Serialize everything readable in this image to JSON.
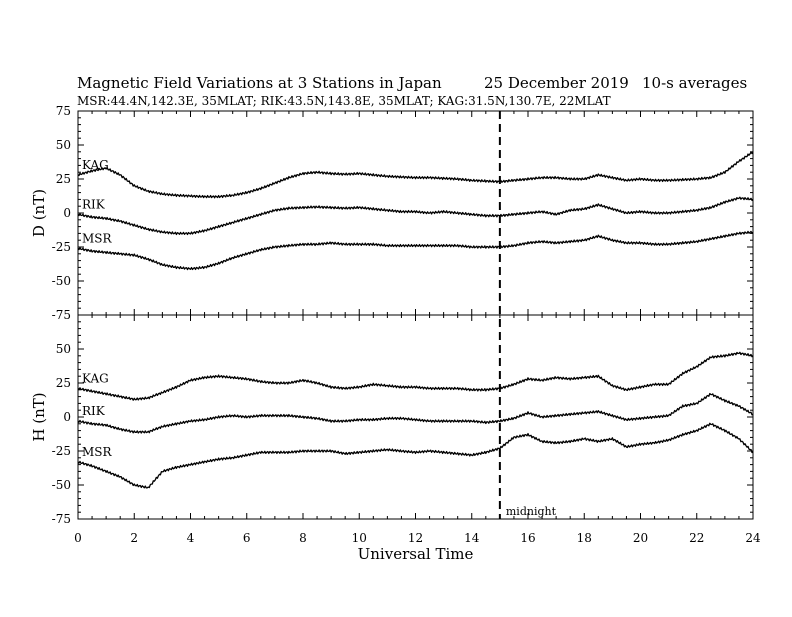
{
  "header": {
    "title": "Magnetic Field Variations at 3 Stations in Japan",
    "date": "25 December 2019",
    "averaging": "10-s averages",
    "stations": "MSR:44.4N,142.3E, 35MLAT;  RIK:43.5N,143.8E, 35MLAT;  KAG:31.5N,130.7E, 22MLAT"
  },
  "chart_data": {
    "type": "line",
    "xlabel": "Universal Time",
    "xlim": [
      0,
      24
    ],
    "xticks": [
      0,
      2,
      4,
      6,
      8,
      10,
      12,
      14,
      16,
      18,
      20,
      22,
      24
    ],
    "marker": {
      "x": 15,
      "label": "midnight",
      "style": "dashed"
    },
    "panels": [
      {
        "id": "D",
        "ylabel": "D (nT)",
        "ylim": [
          -75,
          75
        ],
        "yticks": [
          75,
          50,
          25,
          0,
          -25,
          -50,
          -75
        ],
        "series": [
          {
            "name": "KAG",
            "x": [
              0,
              0.5,
              1,
              1.5,
              2,
              2.5,
              3,
              3.5,
              4,
              4.5,
              5,
              5.5,
              6,
              6.5,
              7,
              7.5,
              8,
              8.5,
              9,
              9.5,
              10,
              10.5,
              11,
              11.5,
              12,
              12.5,
              13,
              13.5,
              14,
              14.5,
              15,
              15.5,
              16,
              16.5,
              17,
              17.5,
              18,
              18.5,
              19,
              19.5,
              20,
              20.5,
              21,
              21.5,
              22,
              22.5,
              23,
              23.5,
              24
            ],
            "y": [
              28,
              31,
              33,
              28,
              20,
              16,
              14,
              13,
              12.5,
              12,
              12,
              13,
              15,
              18,
              22,
              26,
              29,
              30,
              29,
              28.5,
              29,
              28,
              27,
              26.5,
              26,
              26,
              25.5,
              25,
              24,
              23.5,
              23,
              24,
              25,
              26,
              26,
              25,
              25,
              28,
              26,
              24,
              25,
              24,
              24,
              24.5,
              25,
              26,
              30,
              38,
              45
            ]
          },
          {
            "name": "RIK",
            "x": [
              0,
              0.5,
              1,
              1.5,
              2,
              2.5,
              3,
              3.5,
              4,
              4.5,
              5,
              5.5,
              6,
              6.5,
              7,
              7.5,
              8,
              8.5,
              9,
              9.5,
              10,
              10.5,
              11,
              11.5,
              12,
              12.5,
              13,
              13.5,
              14,
              14.5,
              15,
              15.5,
              16,
              16.5,
              17,
              17.5,
              18,
              18.5,
              19,
              19.5,
              20,
              20.5,
              21,
              21.5,
              22,
              22.5,
              23,
              23.5,
              24
            ],
            "y": [
              -1,
              -3,
              -4,
              -6,
              -9,
              -12,
              -14,
              -15,
              -15,
              -13,
              -10,
              -7,
              -4,
              -1,
              2,
              3.5,
              4,
              4.5,
              4,
              3.5,
              4,
              3,
              2,
              1,
              1,
              0,
              1,
              0,
              -1,
              -2,
              -2,
              -1,
              0,
              1,
              -1,
              2,
              3,
              6,
              3,
              0,
              1,
              0,
              0,
              1,
              2,
              4,
              8,
              11,
              10
            ]
          },
          {
            "name": "MSR",
            "x": [
              0,
              0.5,
              1,
              1.5,
              2,
              2.5,
              3,
              3.5,
              4,
              4.5,
              5,
              5.5,
              6,
              6.5,
              7,
              7.5,
              8,
              8.5,
              9,
              9.5,
              10,
              10.5,
              11,
              11.5,
              12,
              12.5,
              13,
              13.5,
              14,
              14.5,
              15,
              15.5,
              16,
              16.5,
              17,
              17.5,
              18,
              18.5,
              19,
              19.5,
              20,
              20.5,
              21,
              21.5,
              22,
              22.5,
              23,
              23.5,
              24
            ],
            "y": [
              -26,
              -28,
              -29,
              -30,
              -31,
              -34,
              -38,
              -40,
              -41,
              -40,
              -37,
              -33,
              -30,
              -27,
              -25,
              -24,
              -23,
              -23,
              -22,
              -23,
              -23,
              -23,
              -24,
              -24,
              -24,
              -24,
              -24,
              -24,
              -25,
              -25,
              -25,
              -24,
              -22,
              -21,
              -22,
              -21,
              -20,
              -17,
              -20,
              -22,
              -22,
              -23,
              -23,
              -22,
              -21,
              -19,
              -17,
              -15,
              -14
            ]
          }
        ]
      },
      {
        "id": "H",
        "ylabel": "H (nT)",
        "ylim": [
          -75,
          75
        ],
        "yticks": [
          50,
          25,
          0,
          -25,
          -50,
          -75
        ],
        "series": [
          {
            "name": "KAG",
            "x": [
              0,
              0.5,
              1,
              1.5,
              2,
              2.5,
              3,
              3.5,
              4,
              4.5,
              5,
              5.5,
              6,
              6.5,
              7,
              7.5,
              8,
              8.5,
              9,
              9.5,
              10,
              10.5,
              11,
              11.5,
              12,
              12.5,
              13,
              13.5,
              14,
              14.5,
              15,
              15.5,
              16,
              16.5,
              17,
              17.5,
              18,
              18.5,
              19,
              19.5,
              20,
              20.5,
              21,
              21.5,
              22,
              22.5,
              23,
              23.5,
              24
            ],
            "y": [
              21,
              19,
              17,
              15,
              13,
              14,
              18,
              22,
              27,
              29,
              30,
              29,
              28,
              26,
              25,
              25,
              27,
              25,
              22,
              21,
              22,
              24,
              23,
              22,
              22,
              21,
              21,
              21,
              20,
              20,
              21,
              24,
              28,
              27,
              29,
              28,
              29,
              30,
              23,
              20,
              22,
              24,
              24,
              32,
              37,
              44,
              45,
              47,
              45
            ]
          },
          {
            "name": "RIK",
            "x": [
              0,
              0.5,
              1,
              1.5,
              2,
              2.5,
              3,
              3.5,
              4,
              4.5,
              5,
              5.5,
              6,
              6.5,
              7,
              7.5,
              8,
              8.5,
              9,
              9.5,
              10,
              10.5,
              11,
              11.5,
              12,
              12.5,
              13,
              13.5,
              14,
              14.5,
              15,
              15.5,
              16,
              16.5,
              17,
              17.5,
              18,
              18.5,
              19,
              19.5,
              20,
              20.5,
              21,
              21.5,
              22,
              22.5,
              23,
              23.5,
              24
            ],
            "y": [
              -3,
              -5,
              -6,
              -9,
              -11,
              -11,
              -7,
              -5,
              -3,
              -2,
              0,
              1,
              0,
              1,
              1,
              1,
              0,
              -1,
              -3,
              -3,
              -2,
              -2,
              -1,
              -1,
              -2,
              -3,
              -3,
              -3,
              -3,
              -4,
              -3,
              -1,
              3,
              0,
              1,
              2,
              3,
              4,
              1,
              -2,
              -1,
              0,
              1,
              8,
              10,
              17,
              12,
              8,
              2
            ]
          },
          {
            "name": "MSR",
            "x": [
              0,
              0.5,
              1,
              1.5,
              2,
              2.5,
              3,
              3.5,
              4,
              4.5,
              5,
              5.5,
              6,
              6.5,
              7,
              7.5,
              8,
              8.5,
              9,
              9.5,
              10,
              10.5,
              11,
              11.5,
              12,
              12.5,
              13,
              13.5,
              14,
              14.5,
              15,
              15.5,
              16,
              16.5,
              17,
              17.5,
              18,
              18.5,
              19,
              19.5,
              20,
              20.5,
              21,
              21.5,
              22,
              22.5,
              23,
              23.5,
              24
            ],
            "y": [
              -33,
              -36,
              -40,
              -44,
              -50,
              -52,
              -40,
              -37,
              -35,
              -33,
              -31,
              -30,
              -28,
              -26,
              -26,
              -26,
              -25,
              -25,
              -25,
              -27,
              -26,
              -25,
              -24,
              -25,
              -26,
              -25,
              -26,
              -27,
              -28,
              -26,
              -23,
              -15,
              -13,
              -18,
              -19,
              -18,
              -16,
              -18,
              -16,
              -22,
              -20,
              -19,
              -17,
              -13,
              -10,
              -5,
              -10,
              -16,
              -26
            ]
          }
        ]
      }
    ]
  }
}
